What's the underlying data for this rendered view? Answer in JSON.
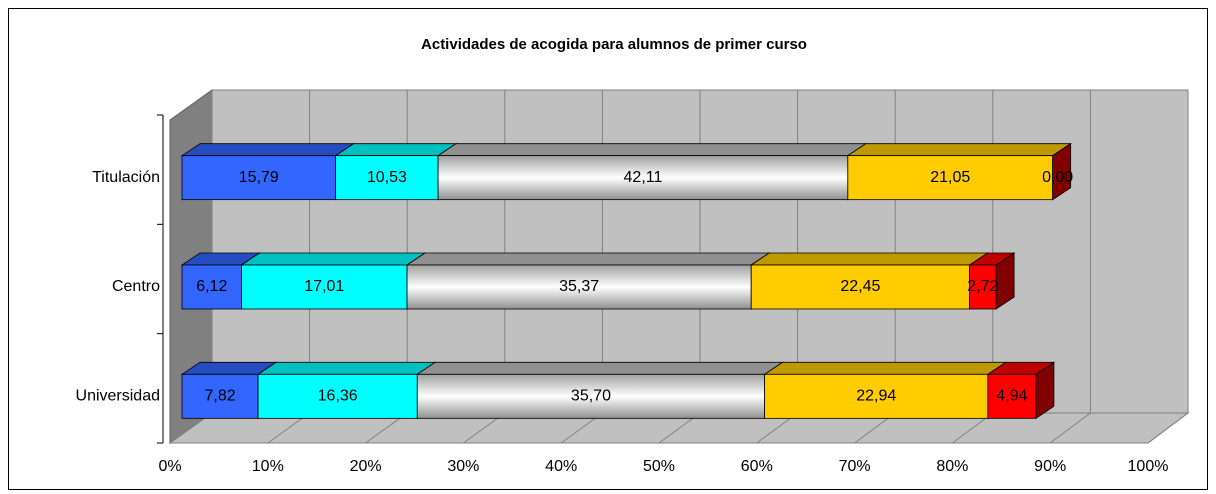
{
  "chart_data": {
    "type": "bar",
    "stacked": true,
    "orientation": "horizontal",
    "three_d": true,
    "title": "Actividades de acogida para alumnos de primer curso",
    "categories": [
      "Titulación",
      "Centro",
      "Universidad"
    ],
    "series": [
      {
        "color": "#3366ff",
        "values": [
          15.79,
          6.12,
          7.82
        ],
        "value_labels": [
          "15,79",
          "6,12",
          "7,82"
        ]
      },
      {
        "color": "#00ffff",
        "values": [
          10.53,
          17.01,
          16.36
        ],
        "value_labels": [
          "10,53",
          "17,01",
          "16,36"
        ]
      },
      {
        "color": "#c0c0c0",
        "values": [
          42.11,
          35.37,
          35.7
        ],
        "value_labels": [
          "42,11",
          "35,37",
          "35,70"
        ]
      },
      {
        "color": "#ffcc00",
        "values": [
          21.05,
          22.45,
          22.94
        ],
        "value_labels": [
          "21,05",
          "22,45",
          "22,94"
        ]
      },
      {
        "color": "#ff0000",
        "values": [
          0.0,
          2.72,
          4.94
        ],
        "value_labels": [
          "0,00",
          "2,72",
          "4,94"
        ]
      }
    ],
    "xlim": [
      0,
      100
    ],
    "xticks": [
      {
        "value": 0,
        "label": "0%"
      },
      {
        "value": 10,
        "label": "10%"
      },
      {
        "value": 20,
        "label": "20%"
      },
      {
        "value": 30,
        "label": "30%"
      },
      {
        "value": 40,
        "label": "40%"
      },
      {
        "value": 50,
        "label": "50%"
      },
      {
        "value": 60,
        "label": "60%"
      },
      {
        "value": 70,
        "label": "70%"
      },
      {
        "value": 80,
        "label": "80%"
      },
      {
        "value": 90,
        "label": "90%"
      },
      {
        "value": 100,
        "label": "100%"
      }
    ],
    "grid": true
  }
}
